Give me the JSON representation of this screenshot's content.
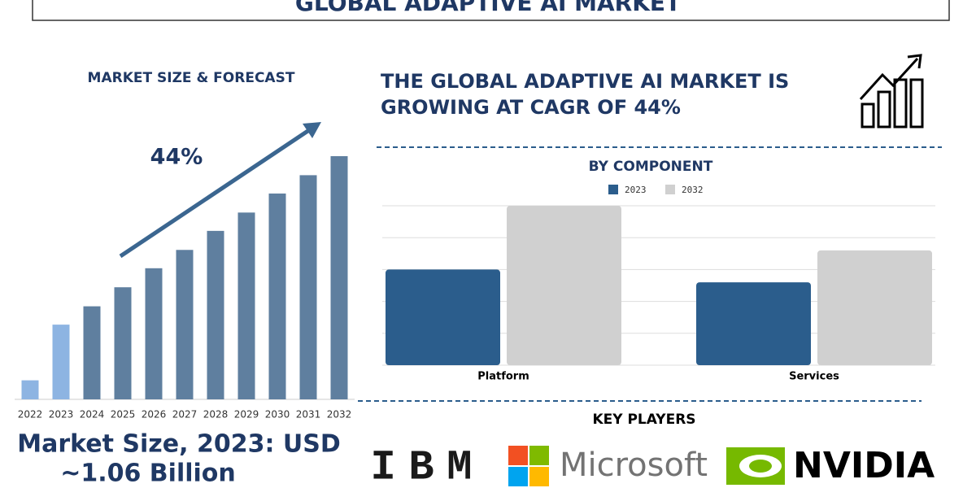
{
  "header": {
    "title": "GLOBAL ADAPTIVE AI MARKET"
  },
  "headline": [
    "THE GLOBAL ADAPTIVE AI MARKET IS",
    "GROWING AT CAGR OF 44%"
  ],
  "market_size": [
    "Market Size, 2023: USD",
    "~1.06 Billion"
  ],
  "key_players_title": "KEY PLAYERS",
  "key_players": [
    "IBM",
    "Microsoft",
    "NVIDIA"
  ],
  "chart_data": [
    {
      "type": "bar",
      "title": "MARKET SIZE & FORECAST",
      "annotation": "44%",
      "categories": [
        "2022",
        "2023",
        "2024",
        "2025",
        "2026",
        "2027",
        "2028",
        "2029",
        "2030",
        "2031",
        "2032"
      ],
      "values": [
        0.27,
        1.06,
        1.32,
        1.59,
        1.86,
        2.12,
        2.39,
        2.65,
        2.92,
        3.18,
        3.45
      ],
      "colors": [
        "#8db4e2",
        "#8db4e2",
        "#5f7f9f",
        "#5f7f9f",
        "#5f7f9f",
        "#5f7f9f",
        "#5f7f9f",
        "#5f7f9f",
        "#5f7f9f",
        "#5f7f9f",
        "#5f7f9f"
      ],
      "ylim": [
        0,
        3.6
      ]
    },
    {
      "type": "grouped_bar",
      "title": "BY COMPONENT",
      "categories": [
        "Platform",
        "Services"
      ],
      "series": [
        {
          "name": "2023",
          "color": "#2b5d8c",
          "values": [
            3.0,
            2.6
          ]
        },
        {
          "name": "2032",
          "color": "#d0d0d0",
          "values": [
            5.0,
            3.6
          ]
        }
      ],
      "ylim": [
        0,
        5
      ],
      "yticks": [
        0,
        1,
        2,
        3,
        4,
        5
      ],
      "grid": true
    }
  ]
}
